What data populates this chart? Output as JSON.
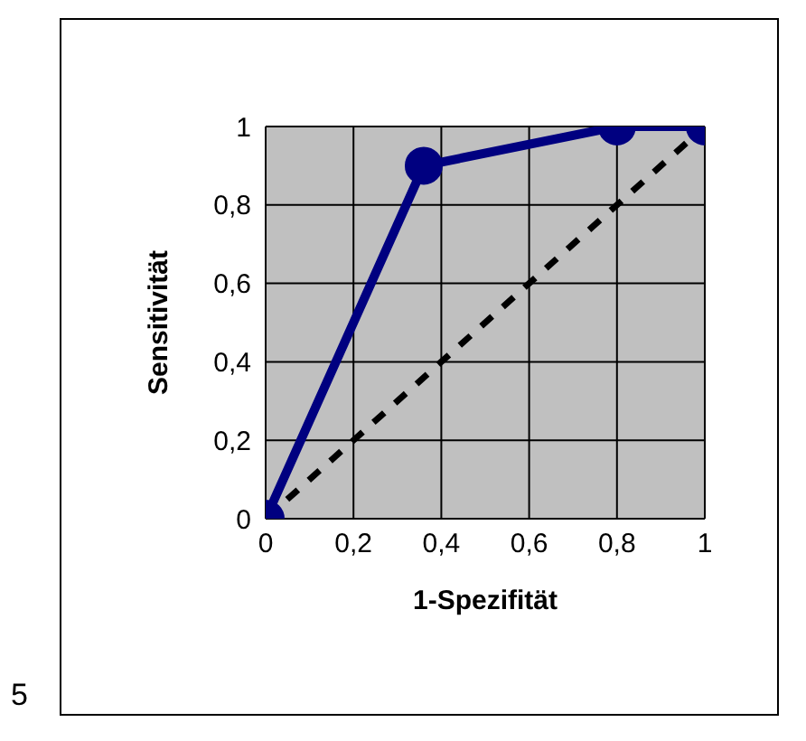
{
  "chart_data": {
    "type": "line",
    "xlabel": "1-Spezifität",
    "ylabel": "Sensitivität",
    "series": [
      {
        "color": "#000080",
        "x": [
          0,
          0.36,
          0.8,
          1
        ],
        "values": [
          0,
          0.9,
          1,
          1
        ],
        "marker": "circle",
        "line_style": "solid"
      },
      {
        "color": "#000000",
        "x": [
          0,
          1
        ],
        "values": [
          0,
          1
        ],
        "marker": "none",
        "line_style": "dashed"
      }
    ],
    "xlim": [
      0,
      1
    ],
    "xticks": [
      0,
      {
        "value": 0.2,
        "label": "0,2"
      },
      {
        "value": 0.4,
        "label": "0,4"
      },
      {
        "value": 0.6,
        "label": "0,6"
      },
      {
        "value": 0.8,
        "label": "0,8"
      },
      1
    ],
    "ylim": [
      0,
      1
    ],
    "yticks": [
      0,
      {
        "value": 0.2,
        "label": "0,2"
      },
      {
        "value": 0.4,
        "label": "0,4"
      },
      {
        "value": 0.6,
        "label": "0,6"
      },
      {
        "value": 0.8,
        "label": "0,8"
      },
      1
    ],
    "grid": true,
    "legend": false,
    "annotations": [
      "5"
    ]
  }
}
